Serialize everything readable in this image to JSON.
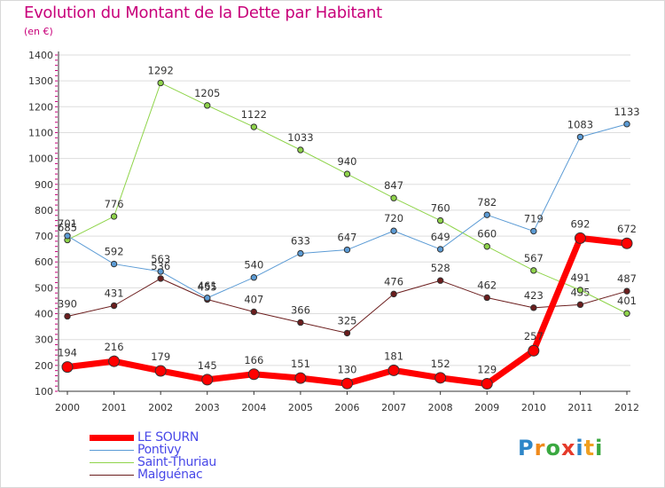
{
  "header": {
    "title": "Evolution du Montant de la Dette par Habitant",
    "subtitle": "(en €)"
  },
  "colors": {
    "title": "#c8007a",
    "axis": "#333333",
    "grid": "#dddddd",
    "tick_marks": "#c8007a",
    "legend_text": "#4848e8"
  },
  "logo": {
    "letters": [
      {
        "char": "P",
        "color": "#2e86c8"
      },
      {
        "char": "r",
        "color": "#f08a1c"
      },
      {
        "char": "o",
        "color": "#3aa840"
      },
      {
        "char": "x",
        "color": "#e53a2a"
      },
      {
        "char": "i",
        "color": "#2e86c8"
      },
      {
        "char": "t",
        "color": "#f0a020"
      },
      {
        "char": "i",
        "color": "#3aa840"
      }
    ]
  },
  "chart_data": {
    "type": "line",
    "title": "Evolution du Montant de la Dette par Habitant",
    "subtitle": "(en €)",
    "xlabel": "",
    "ylabel": "",
    "categories": [
      "2000",
      "2001",
      "2002",
      "2003",
      "2004",
      "2005",
      "2006",
      "2007",
      "2008",
      "2009",
      "2010",
      "2011",
      "2012"
    ],
    "ylim": [
      100,
      1400
    ],
    "yticks": [
      100,
      200,
      300,
      400,
      500,
      600,
      700,
      800,
      900,
      1000,
      1100,
      1200,
      1300,
      1400
    ],
    "grid": "horizontal",
    "legend_position": "bottom-left",
    "series": [
      {
        "name": "Malguénac",
        "color": "#6b1d1d",
        "width": 1,
        "marker_radius": 3.2,
        "values": [
          390,
          431,
          536,
          455,
          407,
          366,
          325,
          476,
          528,
          462,
          423,
          435,
          487
        ],
        "labels": [
          "390",
          "431",
          "536",
          "455",
          "407",
          "366",
          "325",
          "476",
          "528",
          "462",
          "423",
          "435",
          "487"
        ]
      },
      {
        "name": "Saint-Thuriau",
        "color": "#8fd44a",
        "width": 1,
        "marker_radius": 3.2,
        "values": [
          685,
          776,
          1292,
          1205,
          1122,
          1033,
          940,
          847,
          760,
          660,
          567,
          491,
          401
        ],
        "labels": [
          "685",
          "776",
          "1292",
          "1205",
          "1122",
          "1033",
          "940",
          "847",
          "760",
          "660",
          "567",
          "491",
          "401"
        ]
      },
      {
        "name": "Pontivy",
        "color": "#5b9bd5",
        "width": 1,
        "marker_radius": 3.2,
        "values": [
          701,
          592,
          563,
          461,
          540,
          633,
          647,
          720,
          649,
          782,
          719,
          1083,
          1133
        ],
        "labels": [
          "701",
          "592",
          "563",
          "461",
          "540",
          "633",
          "647",
          "720",
          "649",
          "782",
          "719",
          "1083",
          "1133"
        ]
      },
      {
        "name": "LE SOURN",
        "color": "#ff0000",
        "width": 7,
        "marker_radius": 6,
        "values": [
          194,
          216,
          179,
          145,
          166,
          151,
          130,
          181,
          152,
          129,
          257,
          692,
          672
        ],
        "labels": [
          "194",
          "216",
          "179",
          "145",
          "166",
          "151",
          "130",
          "181",
          "152",
          "129",
          "257",
          "692",
          "672"
        ]
      }
    ],
    "legend": [
      "LE SOURN",
      "Pontivy",
      "Saint-Thuriau",
      "Malguénac"
    ]
  }
}
